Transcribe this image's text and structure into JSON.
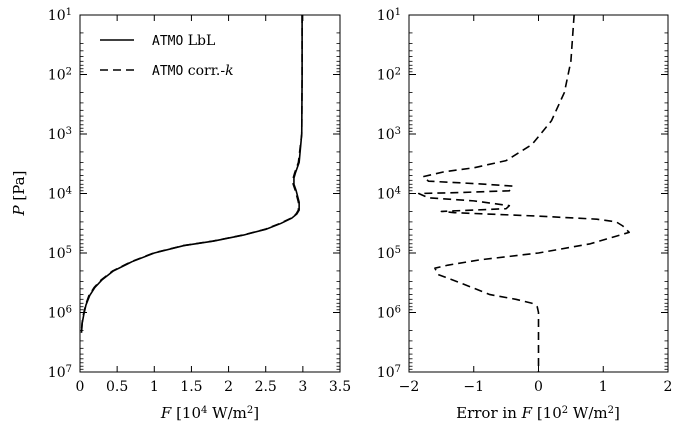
{
  "chart_data": [
    {
      "type": "line",
      "xlabel": {
        "var": "F",
        "unit": "[10",
        "exp": "4",
        "unit2": " W/m",
        "exp2": "2",
        "close": "]"
      },
      "ylabel": {
        "var": "P",
        "unit": "[Pa]"
      },
      "xlim": [
        0,
        3.5
      ],
      "ylim": [
        10000000,
        10
      ],
      "yscale": "log",
      "xticks": [
        0,
        0.5,
        1,
        1.5,
        2,
        2.5,
        3,
        3.5
      ],
      "xtick_labels": [
        "0",
        "0.5",
        "1",
        "1.5",
        "2",
        "2.5",
        "3",
        "3.5"
      ],
      "yticks": [
        10,
        100,
        1000,
        10000,
        100000,
        1000000,
        10000000
      ],
      "ytick_labels": [
        {
          "base": "10",
          "exp": "1"
        },
        {
          "base": "10",
          "exp": "2"
        },
        {
          "base": "10",
          "exp": "3"
        },
        {
          "base": "10",
          "exp": "4"
        },
        {
          "base": "10",
          "exp": "5"
        },
        {
          "base": "10",
          "exp": "6"
        },
        {
          "base": "10",
          "exp": "7"
        }
      ],
      "legend": {
        "placement": "top-left",
        "entries": [
          {
            "code": "ATMO",
            "label": " LbL",
            "style": "solid"
          },
          {
            "code": "ATMO",
            "label": " corr.-",
            "italic": "k",
            "style": "dashed"
          }
        ]
      },
      "series": [
        {
          "style": "solid",
          "points": [
            [
              2.99,
              10
            ],
            [
              2.99,
              100
            ],
            [
              2.985,
              1000
            ],
            [
              2.95,
              3000
            ],
            [
              2.9,
              4500
            ],
            [
              2.88,
              5500
            ],
            [
              2.88,
              7000
            ],
            [
              2.91,
              9000
            ],
            [
              2.95,
              14000
            ],
            [
              2.95,
              19000
            ],
            [
              2.92,
              22000
            ],
            [
              2.85,
              26000
            ],
            [
              2.7,
              32000
            ],
            [
              2.5,
              40000
            ],
            [
              2.2,
              50000
            ],
            [
              1.8,
              63000
            ],
            [
              1.4,
              75000
            ],
            [
              1.0,
              100000
            ],
            [
              0.7,
              140000
            ],
            [
              0.45,
              200000
            ],
            [
              0.3,
              280000
            ],
            [
              0.2,
              380000
            ],
            [
              0.13,
              520000
            ],
            [
              0.08,
              750000
            ],
            [
              0.05,
              1100000
            ],
            [
              0.03,
              1500000
            ],
            [
              0.02,
              2200000
            ]
          ]
        },
        {
          "style": "dashed",
          "points": [
            [
              2.99,
              10
            ],
            [
              2.99,
              100
            ],
            [
              2.985,
              1000
            ],
            [
              2.94,
              3000
            ],
            [
              2.89,
              4500
            ],
            [
              2.87,
              5500
            ],
            [
              2.87,
              7000
            ],
            [
              2.9,
              9000
            ],
            [
              2.94,
              14000
            ],
            [
              2.94,
              19000
            ],
            [
              2.91,
              22000
            ],
            [
              2.84,
              26000
            ],
            [
              2.69,
              32000
            ],
            [
              2.49,
              40000
            ],
            [
              2.19,
              50000
            ],
            [
              1.79,
              63000
            ],
            [
              1.39,
              75000
            ],
            [
              0.99,
              100000
            ],
            [
              0.69,
              140000
            ],
            [
              0.44,
              200000
            ],
            [
              0.29,
              280000
            ],
            [
              0.19,
              380000
            ],
            [
              0.12,
              520000
            ],
            [
              0.075,
              750000
            ],
            [
              0.045,
              1100000
            ],
            [
              0.028,
              1500000
            ],
            [
              0.018,
              2200000
            ]
          ]
        }
      ]
    },
    {
      "type": "line",
      "xlabel": {
        "prefix": "Error in ",
        "var": "F",
        "unit": " [10",
        "exp": "2",
        "unit2": " W/m",
        "exp2": "2",
        "close": "]"
      },
      "xlim": [
        -2,
        2
      ],
      "ylim": [
        10000000,
        10
      ],
      "yscale": "log",
      "xticks": [
        -2,
        -1,
        0,
        1,
        2
      ],
      "xtick_labels": [
        "−2",
        "−1",
        "0",
        "1",
        "2"
      ],
      "yticks": [
        10,
        100,
        1000,
        10000,
        100000,
        1000000,
        10000000
      ],
      "ytick_labels": [
        {
          "base": "10",
          "exp": "1"
        },
        {
          "base": "10",
          "exp": "2"
        },
        {
          "base": "10",
          "exp": "3"
        },
        {
          "base": "10",
          "exp": "4"
        },
        {
          "base": "10",
          "exp": "5"
        },
        {
          "base": "10",
          "exp": "6"
        },
        {
          "base": "10",
          "exp": "7"
        }
      ],
      "series": [
        {
          "style": "dashed",
          "points": [
            [
              0.55,
              10
            ],
            [
              0.5,
              60
            ],
            [
              0.4,
              200
            ],
            [
              0.2,
              600
            ],
            [
              -0.1,
              1500
            ],
            [
              -0.5,
              2800
            ],
            [
              -1.0,
              3700
            ],
            [
              -1.45,
              4300
            ],
            [
              -1.78,
              5200
            ],
            [
              -1.7,
              6200
            ],
            [
              -0.9,
              6900
            ],
            [
              -0.4,
              7500
            ],
            [
              -0.45,
              9000
            ],
            [
              -1.3,
              9700
            ],
            [
              -1.85,
              10000
            ],
            [
              -1.7,
              11800
            ],
            [
              -1.0,
              13300
            ],
            [
              -0.45,
              16000
            ],
            [
              -0.5,
              18000
            ],
            [
              -1.5,
              20000
            ],
            [
              -1.3,
              21000
            ],
            [
              0.0,
              24000
            ],
            [
              0.9,
              27000
            ],
            [
              1.2,
              30000
            ],
            [
              1.3,
              35000
            ],
            [
              1.4,
              45000
            ],
            [
              0.8,
              70000
            ],
            [
              0.0,
              100000
            ],
            [
              -0.9,
              130000
            ],
            [
              -1.4,
              160000
            ],
            [
              -1.6,
              180000
            ],
            [
              -1.55,
              230000
            ],
            [
              -1.2,
              320000
            ],
            [
              -0.75,
              500000
            ],
            [
              -0.35,
              600000
            ],
            [
              -0.1,
              700000
            ],
            [
              -0.02,
              800000
            ],
            [
              0.0,
              1000000
            ],
            [
              0.0,
              10000000
            ]
          ]
        }
      ]
    }
  ]
}
